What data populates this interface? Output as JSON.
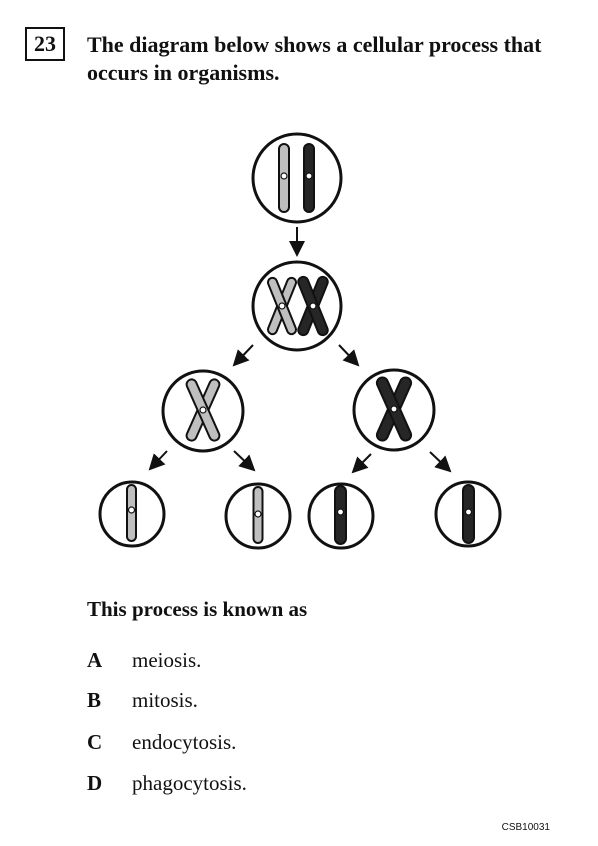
{
  "question": {
    "number": "23",
    "stem": "The diagram below shows a cellular process that occurs in organisms.",
    "prompt": "This process is known as",
    "choices": [
      {
        "letter": "A",
        "text": "meiosis."
      },
      {
        "letter": "B",
        "text": "mitosis."
      },
      {
        "letter": "C",
        "text": "endocytosis."
      },
      {
        "letter": "D",
        "text": "phagocytosis."
      }
    ]
  },
  "footer": {
    "code": "CSB10031"
  },
  "colors": {
    "light_chromosome": "#bfbfbf",
    "dark_chromosome": "#262626",
    "outline": "#111111"
  }
}
